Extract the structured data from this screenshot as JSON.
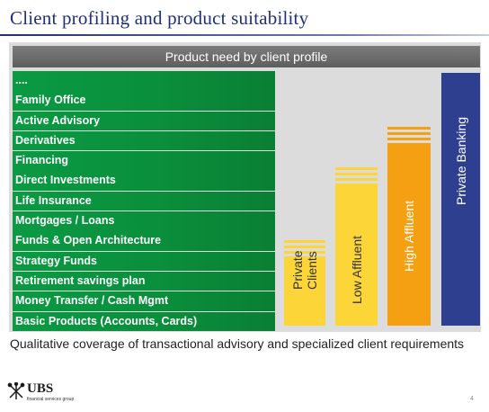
{
  "title": "Client profiling and product suitability",
  "panel": {
    "header": "Product need by client profile",
    "products": [
      "....",
      "Family Office",
      "Active Advisory",
      "Derivatives",
      "Financing",
      "Direct Investments",
      "Life Insurance",
      "Mortgages / Loans",
      "Funds & Open Architecture",
      "Strategy Funds",
      "Retirement savings plan",
      "Money Transfer / Cash Mgmt",
      "Basic Products (Accounts, Cards)"
    ],
    "segments": {
      "private_clients": {
        "line1": "Private",
        "line2": "Clients",
        "color": "#fcd538"
      },
      "low_affluent": {
        "label": "Low Affluent",
        "color": "#fcd538"
      },
      "high_affluent": {
        "label": "High Affluent",
        "color": "#f59f12"
      },
      "private_banking": {
        "label": "Private Banking",
        "color": "#2e3f8f"
      }
    }
  },
  "caption": "Qualitative coverage of  transactional advisory and specialized client requirements",
  "logo": {
    "name": "UBS",
    "subtitle": "financial services group"
  },
  "page_number": "4",
  "colors": {
    "title": "#1f2f7a",
    "product_row": "#0a9a43",
    "header": "#6b6b6b"
  }
}
